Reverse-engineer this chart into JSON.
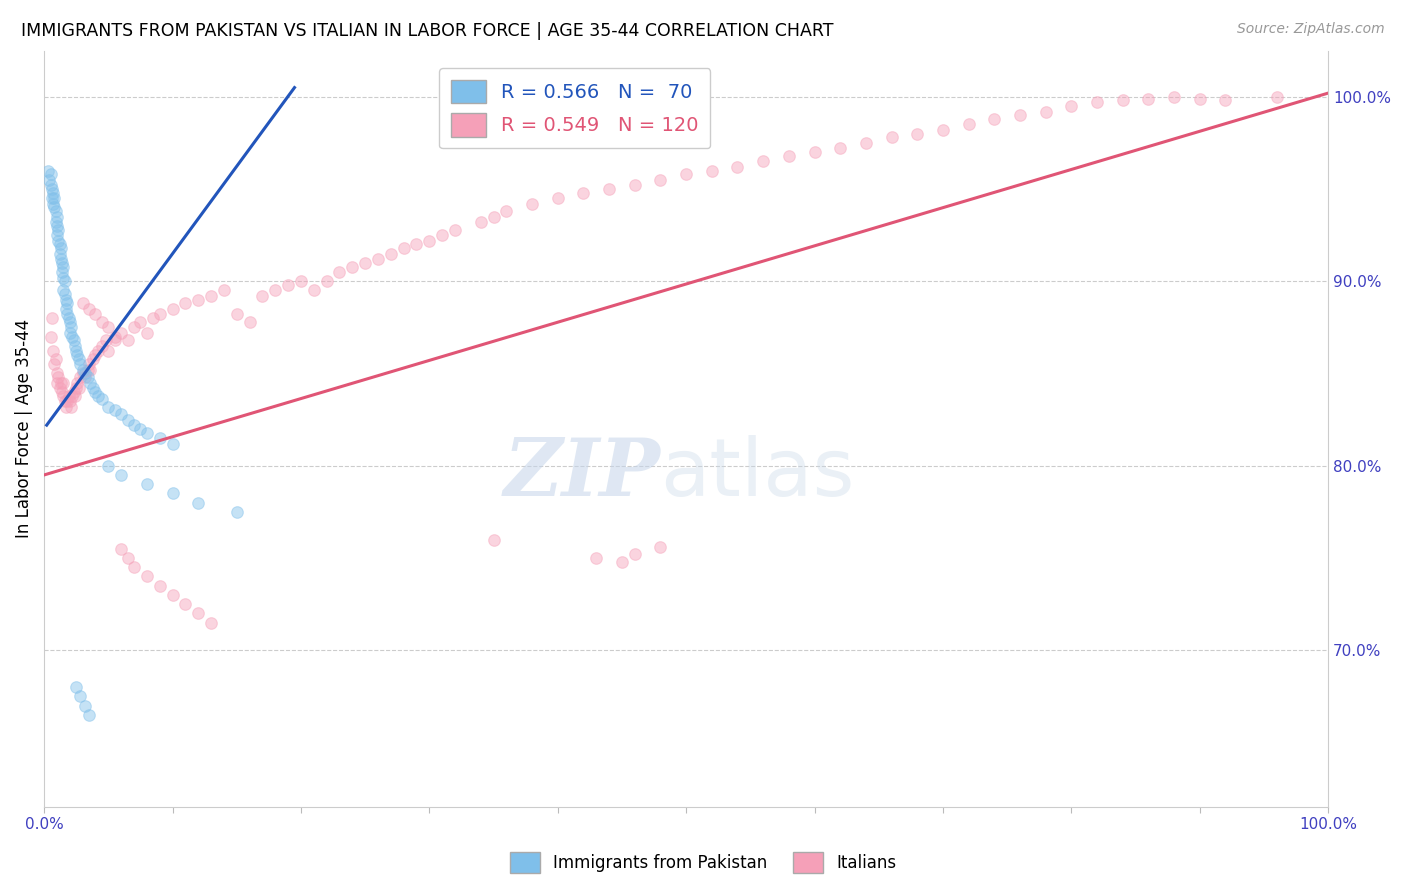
{
  "title": "IMMIGRANTS FROM PAKISTAN VS ITALIAN IN LABOR FORCE | AGE 35-44 CORRELATION CHART",
  "source": "Source: ZipAtlas.com",
  "ylabel": "In Labor Force | Age 35-44",
  "xlim": [
    0,
    1.0
  ],
  "ylim": [
    0.615,
    1.025
  ],
  "x_ticks": [
    0.0,
    0.1,
    0.2,
    0.3,
    0.4,
    0.5,
    0.6,
    0.7,
    0.8,
    0.9,
    1.0
  ],
  "x_tick_labels": [
    "0.0%",
    "",
    "",
    "",
    "",
    "",
    "",
    "",
    "",
    "",
    "100.0%"
  ],
  "y_ticks_right": [
    0.7,
    0.8,
    0.9,
    1.0
  ],
  "y_tick_labels_right": [
    "70.0%",
    "80.0%",
    "90.0%",
    "100.0%"
  ],
  "legend_blue_label": "R = 0.566   N =  70",
  "legend_pink_label": "R = 0.549   N = 120",
  "blue_color": "#7fbfea",
  "pink_color": "#f5a0b8",
  "blue_line_color": "#2255bb",
  "pink_line_color": "#e05575",
  "marker_size": 70,
  "marker_alpha": 0.45,
  "blue_line_x": [
    0.002,
    0.195
  ],
  "blue_line_y": [
    0.822,
    1.005
  ],
  "pink_line_x": [
    0.0,
    1.0
  ],
  "pink_line_y": [
    0.795,
    1.002
  ],
  "blue_scatter_x": [
    0.003,
    0.004,
    0.005,
    0.005,
    0.006,
    0.006,
    0.007,
    0.007,
    0.008,
    0.008,
    0.009,
    0.009,
    0.01,
    0.01,
    0.01,
    0.011,
    0.011,
    0.012,
    0.012,
    0.013,
    0.013,
    0.014,
    0.014,
    0.015,
    0.015,
    0.015,
    0.016,
    0.016,
    0.017,
    0.017,
    0.018,
    0.018,
    0.019,
    0.02,
    0.02,
    0.021,
    0.022,
    0.023,
    0.024,
    0.025,
    0.026,
    0.027,
    0.028,
    0.03,
    0.032,
    0.034,
    0.036,
    0.038,
    0.04,
    0.042,
    0.045,
    0.05,
    0.055,
    0.06,
    0.065,
    0.07,
    0.075,
    0.08,
    0.09,
    0.1,
    0.05,
    0.06,
    0.08,
    0.1,
    0.12,
    0.15,
    0.025,
    0.028,
    0.032,
    0.035
  ],
  "blue_scatter_y": [
    0.96,
    0.955,
    0.958,
    0.952,
    0.95,
    0.945,
    0.948,
    0.942,
    0.945,
    0.94,
    0.938,
    0.932,
    0.935,
    0.93,
    0.925,
    0.928,
    0.922,
    0.92,
    0.915,
    0.918,
    0.912,
    0.91,
    0.905,
    0.908,
    0.902,
    0.895,
    0.9,
    0.893,
    0.89,
    0.885,
    0.888,
    0.882,
    0.88,
    0.878,
    0.872,
    0.875,
    0.87,
    0.868,
    0.865,
    0.862,
    0.86,
    0.858,
    0.855,
    0.852,
    0.85,
    0.848,
    0.845,
    0.842,
    0.84,
    0.838,
    0.836,
    0.832,
    0.83,
    0.828,
    0.825,
    0.822,
    0.82,
    0.818,
    0.815,
    0.812,
    0.8,
    0.795,
    0.79,
    0.785,
    0.78,
    0.775,
    0.68,
    0.675,
    0.67,
    0.665
  ],
  "pink_scatter_x": [
    0.005,
    0.006,
    0.007,
    0.008,
    0.009,
    0.01,
    0.01,
    0.011,
    0.012,
    0.013,
    0.014,
    0.015,
    0.015,
    0.016,
    0.017,
    0.018,
    0.019,
    0.02,
    0.021,
    0.022,
    0.023,
    0.024,
    0.025,
    0.026,
    0.027,
    0.028,
    0.03,
    0.032,
    0.034,
    0.035,
    0.036,
    0.038,
    0.04,
    0.042,
    0.045,
    0.048,
    0.05,
    0.055,
    0.06,
    0.065,
    0.07,
    0.075,
    0.08,
    0.085,
    0.09,
    0.1,
    0.11,
    0.12,
    0.13,
    0.14,
    0.15,
    0.16,
    0.17,
    0.18,
    0.19,
    0.2,
    0.21,
    0.22,
    0.23,
    0.24,
    0.25,
    0.26,
    0.27,
    0.28,
    0.29,
    0.3,
    0.31,
    0.32,
    0.34,
    0.35,
    0.36,
    0.38,
    0.4,
    0.42,
    0.44,
    0.46,
    0.48,
    0.5,
    0.52,
    0.54,
    0.56,
    0.58,
    0.6,
    0.62,
    0.64,
    0.66,
    0.68,
    0.7,
    0.72,
    0.74,
    0.76,
    0.78,
    0.8,
    0.82,
    0.84,
    0.86,
    0.88,
    0.9,
    0.92,
    0.96,
    0.03,
    0.035,
    0.04,
    0.045,
    0.05,
    0.055,
    0.06,
    0.065,
    0.07,
    0.08,
    0.09,
    0.1,
    0.11,
    0.12,
    0.13,
    0.35,
    0.43,
    0.45,
    0.46,
    0.48
  ],
  "pink_scatter_y": [
    0.87,
    0.88,
    0.862,
    0.855,
    0.858,
    0.85,
    0.845,
    0.848,
    0.842,
    0.845,
    0.84,
    0.838,
    0.845,
    0.835,
    0.832,
    0.835,
    0.838,
    0.835,
    0.832,
    0.838,
    0.84,
    0.838,
    0.842,
    0.845,
    0.842,
    0.848,
    0.85,
    0.848,
    0.852,
    0.855,
    0.852,
    0.858,
    0.86,
    0.862,
    0.865,
    0.868,
    0.862,
    0.87,
    0.872,
    0.868,
    0.875,
    0.878,
    0.872,
    0.88,
    0.882,
    0.885,
    0.888,
    0.89,
    0.892,
    0.895,
    0.882,
    0.878,
    0.892,
    0.895,
    0.898,
    0.9,
    0.895,
    0.9,
    0.905,
    0.908,
    0.91,
    0.912,
    0.915,
    0.918,
    0.92,
    0.922,
    0.925,
    0.928,
    0.932,
    0.935,
    0.938,
    0.942,
    0.945,
    0.948,
    0.95,
    0.952,
    0.955,
    0.958,
    0.96,
    0.962,
    0.965,
    0.968,
    0.97,
    0.972,
    0.975,
    0.978,
    0.98,
    0.982,
    0.985,
    0.988,
    0.99,
    0.992,
    0.995,
    0.997,
    0.998,
    0.999,
    1.0,
    0.999,
    0.998,
    1.0,
    0.888,
    0.885,
    0.882,
    0.878,
    0.875,
    0.868,
    0.755,
    0.75,
    0.745,
    0.74,
    0.735,
    0.73,
    0.725,
    0.72,
    0.715,
    0.76,
    0.75,
    0.748,
    0.752,
    0.756
  ]
}
